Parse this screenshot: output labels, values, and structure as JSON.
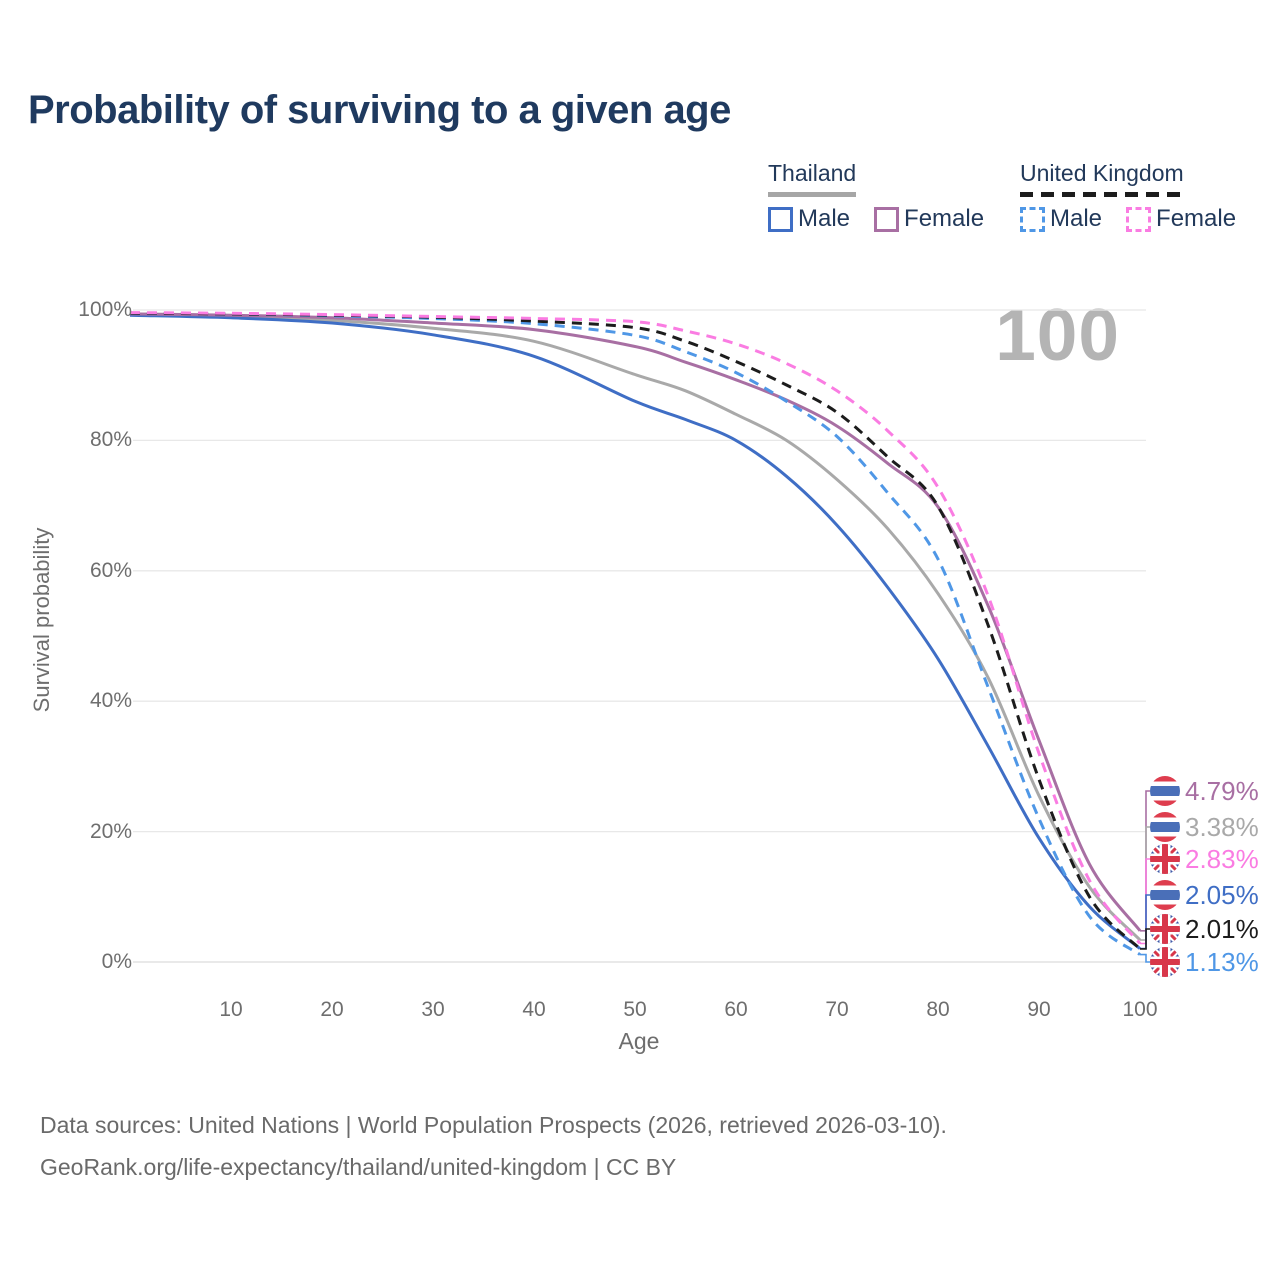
{
  "title": "Probability of surviving to a given age",
  "watermark_age": "100",
  "legend": {
    "groups": [
      {
        "label": "Thailand",
        "underline_style": "solid",
        "underline_color": "#a6a6a6",
        "items": [
          {
            "label": "Male",
            "color": "#3f6ec5",
            "line": "solid"
          },
          {
            "label": "Female",
            "color": "#a86fa3",
            "line": "solid"
          }
        ]
      },
      {
        "label": "United Kingdom",
        "underline_style": "dashed",
        "underline_color": "#1c1c1c",
        "items": [
          {
            "label": "Male",
            "color": "#4f97e6",
            "line": "dashed"
          },
          {
            "label": "Female",
            "color": "#fa7ce2",
            "line": "dashed"
          }
        ]
      }
    ]
  },
  "chart_data": {
    "type": "line",
    "title": "Probability of surviving to a given age",
    "xlabel": "Age",
    "ylabel": "Survival probability",
    "xlim": [
      0,
      100
    ],
    "ylim": [
      0,
      100
    ],
    "grid": "horizontal",
    "legend_position": "top-right",
    "hover_age": 100,
    "x_ticks": [
      10,
      20,
      30,
      40,
      50,
      60,
      70,
      80,
      90,
      100
    ],
    "y_ticks": [
      0,
      20,
      40,
      60,
      80,
      100
    ],
    "y_tick_suffix": "%",
    "x": [
      0,
      10,
      20,
      30,
      40,
      50,
      55,
      60,
      65,
      70,
      75,
      80,
      85,
      90,
      95,
      100
    ],
    "series": [
      {
        "id": "th-all",
        "name": "Thailand",
        "color": "#a9a9a9",
        "line": "solid",
        "values": [
          99.3,
          99.0,
          98.4,
          97.2,
          95.2,
          90.1,
          87.6,
          84.0,
          80.0,
          74.0,
          66.5,
          56.5,
          43.5,
          25.5,
          11.5,
          3.38
        ]
      },
      {
        "id": "th-male",
        "name": "Thailand Male",
        "color": "#3f6ec5",
        "line": "solid",
        "values": [
          99.2,
          98.8,
          98.0,
          96.2,
          92.9,
          86.0,
          83.2,
          80.0,
          74.5,
          67.0,
          57.5,
          46.5,
          33.0,
          19.0,
          8.5,
          2.05
        ]
      },
      {
        "id": "th-female",
        "name": "Thailand Female",
        "color": "#a86fa3",
        "line": "solid",
        "values": [
          99.4,
          99.2,
          98.8,
          98.0,
          97.0,
          94.4,
          92.0,
          89.3,
          86.2,
          82.2,
          76.5,
          69.8,
          54.5,
          34.0,
          15.0,
          4.79
        ]
      },
      {
        "id": "uk-male",
        "name": "United Kingdom Male",
        "color": "#4f97e6",
        "line": "dashed",
        "values": [
          99.5,
          99.4,
          99.1,
          98.7,
          97.9,
          96.1,
          93.6,
          90.4,
          86.0,
          80.6,
          72.0,
          61.8,
          42.0,
          22.0,
          7.0,
          1.13
        ]
      },
      {
        "id": "uk-all",
        "name": "United Kingdom",
        "color": "#1c1c1c",
        "line": "dashed",
        "values": [
          99.5,
          99.4,
          99.2,
          98.9,
          98.3,
          97.3,
          95.2,
          92.1,
          88.5,
          84.3,
          77.5,
          69.9,
          51.5,
          28.0,
          10.0,
          2.01
        ]
      },
      {
        "id": "uk-female",
        "name": "United Kingdom Female",
        "color": "#fa7ce2",
        "line": "dashed",
        "values": [
          99.6,
          99.5,
          99.3,
          99.0,
          98.7,
          98.2,
          96.8,
          94.8,
          91.8,
          87.6,
          81.5,
          72.8,
          56.0,
          32.0,
          12.5,
          2.83
        ]
      }
    ]
  },
  "end_labels": [
    {
      "series_id": "th-female",
      "value": "4.79%",
      "flag": "thailand"
    },
    {
      "series_id": "th-all",
      "value": "3.38%",
      "flag": "thailand"
    },
    {
      "series_id": "uk-female",
      "value": "2.83%",
      "flag": "uk"
    },
    {
      "series_id": "th-male",
      "value": "2.05%",
      "flag": "thailand"
    },
    {
      "series_id": "uk-all",
      "value": "2.01%",
      "flag": "uk"
    },
    {
      "series_id": "uk-male",
      "value": "1.13%",
      "flag": "uk"
    }
  ],
  "flag_colors": {
    "thailand": {
      "red": "#de3d4e",
      "white": "#ffffff",
      "blue": "#4a6fb8"
    },
    "uk": {
      "blue": "#3d58a7",
      "white": "#ffffff",
      "red": "#d8374a"
    }
  },
  "footer": {
    "line1": "Data sources: United Nations | World Population Prospects (2026, retrieved 2026-03-10).",
    "line2": "GeoRank.org/life-expectancy/thailand/united-kingdom | CC BY"
  }
}
